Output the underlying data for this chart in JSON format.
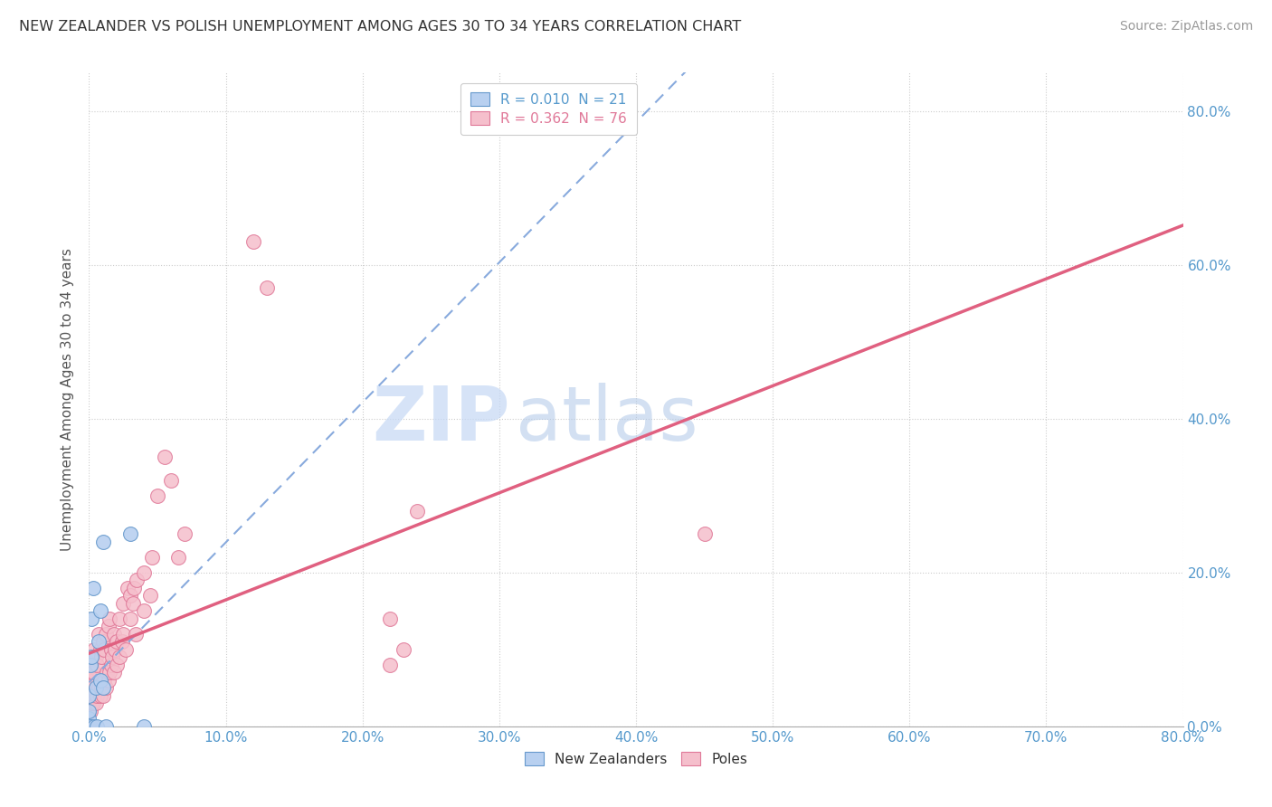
{
  "title": "NEW ZEALANDER VS POLISH UNEMPLOYMENT AMONG AGES 30 TO 34 YEARS CORRELATION CHART",
  "source": "Source: ZipAtlas.com",
  "ylabel": "Unemployment Among Ages 30 to 34 years",
  "xlim": [
    0.0,
    0.8
  ],
  "ylim": [
    0.0,
    0.85
  ],
  "legend_nz": "R = 0.010  N = 21",
  "legend_pl": "R = 0.362  N = 76",
  "nz_color": "#b8d0f0",
  "nz_edge": "#6699cc",
  "pl_color": "#f5bfcc",
  "pl_edge": "#e07898",
  "nz_trend_color": "#88aadd",
  "pl_trend_color": "#e06080",
  "watermark_zip": "ZIP",
  "watermark_atlas": "atlas",
  "watermark_color_zip": "#c8d8f0",
  "watermark_color_atlas": "#b0c8e8",
  "background": "#ffffff",
  "grid_color": "#cccccc",
  "axis_label_color": "#5599cc",
  "title_color": "#333333",
  "nz_x": [
    0.0,
    0.0,
    0.0,
    0.0,
    0.0,
    0.001,
    0.001,
    0.002,
    0.002,
    0.003,
    0.004,
    0.005,
    0.006,
    0.007,
    0.008,
    0.008,
    0.01,
    0.01,
    0.012,
    0.03,
    0.04
  ],
  "nz_y": [
    0.0,
    0.0,
    0.01,
    0.02,
    0.04,
    0.0,
    0.08,
    0.09,
    0.14,
    0.18,
    0.0,
    0.05,
    0.0,
    0.11,
    0.06,
    0.15,
    0.05,
    0.24,
    0.0,
    0.25,
    0.0
  ],
  "pl_x": [
    0.0,
    0.0,
    0.0,
    0.0,
    0.0,
    0.0,
    0.0,
    0.0,
    0.0,
    0.001,
    0.001,
    0.001,
    0.002,
    0.002,
    0.003,
    0.003,
    0.004,
    0.004,
    0.005,
    0.005,
    0.006,
    0.006,
    0.007,
    0.007,
    0.008,
    0.008,
    0.009,
    0.009,
    0.01,
    0.01,
    0.011,
    0.011,
    0.012,
    0.012,
    0.013,
    0.014,
    0.014,
    0.015,
    0.015,
    0.016,
    0.016,
    0.017,
    0.018,
    0.018,
    0.019,
    0.02,
    0.02,
    0.022,
    0.022,
    0.024,
    0.025,
    0.025,
    0.027,
    0.028,
    0.03,
    0.03,
    0.032,
    0.033,
    0.034,
    0.035,
    0.04,
    0.04,
    0.045,
    0.046,
    0.05,
    0.055,
    0.06,
    0.065,
    0.07,
    0.12,
    0.13,
    0.22,
    0.22,
    0.23,
    0.24,
    0.45
  ],
  "pl_y": [
    0.0,
    0.0,
    0.0,
    0.0,
    0.02,
    0.03,
    0.05,
    0.06,
    0.09,
    0.0,
    0.02,
    0.07,
    0.03,
    0.08,
    0.03,
    0.07,
    0.04,
    0.1,
    0.03,
    0.09,
    0.04,
    0.08,
    0.05,
    0.12,
    0.04,
    0.1,
    0.05,
    0.09,
    0.04,
    0.11,
    0.06,
    0.1,
    0.05,
    0.12,
    0.07,
    0.06,
    0.13,
    0.07,
    0.14,
    0.08,
    0.1,
    0.09,
    0.07,
    0.12,
    0.1,
    0.08,
    0.11,
    0.09,
    0.14,
    0.11,
    0.12,
    0.16,
    0.1,
    0.18,
    0.14,
    0.17,
    0.16,
    0.18,
    0.12,
    0.19,
    0.15,
    0.2,
    0.17,
    0.22,
    0.3,
    0.35,
    0.32,
    0.22,
    0.25,
    0.63,
    0.57,
    0.14,
    0.08,
    0.1,
    0.28,
    0.25
  ]
}
